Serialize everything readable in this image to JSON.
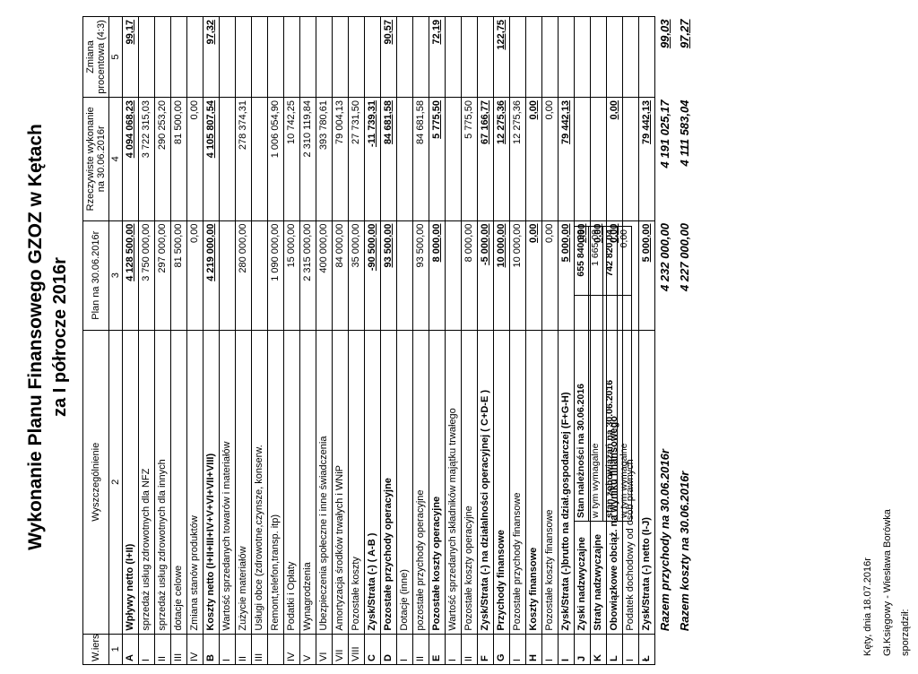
{
  "doc": {
    "title": "Wykonanie Planu Finansowego GZOZ w Kętach",
    "subtitle": "za I półrocze 2016r"
  },
  "headers": {
    "wiersz": "W.iersz",
    "wyszczegolnienie": "Wyszczególnienie",
    "plan": "Plan na 30.06.2016r",
    "wykonanie": "Rzeczywiste wykonanie na 30.06.2016r",
    "zmiana": "Zmiana procentowa (4:3)"
  },
  "colnums": [
    "1",
    "2",
    "3",
    "4",
    "5"
  ],
  "rows": [
    {
      "id": "A",
      "label": "Wpływy netto (I+II)",
      "plan": "4 128 500,00",
      "wyk": "4 094 068,23",
      "pct": "99,17",
      "bold": true
    },
    {
      "id": "I",
      "label": "sprzedaż usług zdrowotnych dla NFZ",
      "plan": "3 750 000,00",
      "wyk": "3 722 315,03",
      "pct": "",
      "bold": false
    },
    {
      "id": "II",
      "label": "sprzedaż usług zdrowotnych dla innych",
      "plan": "297 000,00",
      "wyk": "290 253,20",
      "pct": "",
      "bold": false
    },
    {
      "id": "III",
      "label": "dotacje celowe",
      "plan": "81 500,00",
      "wyk": "81 500,00",
      "pct": "",
      "bold": false
    },
    {
      "id": "IV",
      "label": "Zmiana stanów produktów",
      "plan": "0,00",
      "wyk": "0,00",
      "pct": "",
      "bold": false
    },
    {
      "id": "B",
      "label": "Koszty netto (I+II+III+IV+V+VI+VII+VIII)",
      "plan": "4 219 000,00",
      "wyk": "4 105 807,54",
      "pct": "97,32",
      "bold": true
    },
    {
      "id": "I",
      "label": "Wartość sprzedanych towarów i materiałów",
      "plan": "",
      "wyk": "",
      "pct": "",
      "bold": false
    },
    {
      "id": "II",
      "label": "Zużycie materiałów",
      "plan": "280 000,00",
      "wyk": "278 374,31",
      "pct": "",
      "bold": false
    },
    {
      "id": "III",
      "label": "Usługi obce (zdrowotne,czynsze, konserw.",
      "plan": "",
      "wyk": "",
      "pct": "",
      "bold": false
    },
    {
      "id": "",
      "label": "Remont,telefon,transp. itp)",
      "plan": "1 090 000,00",
      "wyk": "1 006 054,90",
      "pct": "",
      "bold": false
    },
    {
      "id": "IV",
      "label": "Podatki i Opłaty",
      "plan": "15 000,00",
      "wyk": "10 742,25",
      "pct": "",
      "bold": false
    },
    {
      "id": "V",
      "label": "Wynagrodzenia",
      "plan": "2 315 000,00",
      "wyk": "2 310 119,84",
      "pct": "",
      "bold": false
    },
    {
      "id": "VI",
      "label": "Ubezpieczenia społeczne i inne świadczenia",
      "plan": "400 000,00",
      "wyk": "393 780,61",
      "pct": "",
      "bold": false
    },
    {
      "id": "VII",
      "label": "Amortyzacja środków trwałych i WNiP",
      "plan": "84 000,00",
      "wyk": "79 004,13",
      "pct": "",
      "bold": false
    },
    {
      "id": "VIII",
      "label": "Pozostałe koszty",
      "plan": "35 000,00",
      "wyk": "27 731,50",
      "pct": "",
      "bold": false
    },
    {
      "id": "C",
      "label": "Zysk/Strata (-) ( A-B )",
      "plan": "-90 500,00",
      "wyk": "-11 739,31",
      "pct": "",
      "bold": true
    },
    {
      "id": "D",
      "label": "Pozostałe przychody operacyjne",
      "plan": "93 500,00",
      "wyk": "84 681,58",
      "pct": "90,57",
      "bold": true
    },
    {
      "id": "I",
      "label": "Dotacje (inne)",
      "plan": "",
      "wyk": "",
      "pct": "",
      "bold": false
    },
    {
      "id": "II",
      "label": "pozostałe przychody operacyjne",
      "plan": "93 500,00",
      "wyk": "84 681,58",
      "pct": "",
      "bold": false
    },
    {
      "id": "E",
      "label": "Pozostałe koszty operacyjne",
      "plan": "8 000,00",
      "wyk": "5 775,50",
      "pct": "72,19",
      "bold": true
    },
    {
      "id": "I",
      "label": "Wartość sprzedanych składników majątku trwałego",
      "plan": "",
      "wyk": "",
      "pct": "",
      "bold": false
    },
    {
      "id": "II",
      "label": "Pozostałe koszty operacyjne",
      "plan": "8 000,00",
      "wyk": "5 775,50",
      "pct": "",
      "bold": false
    },
    {
      "id": "F",
      "label": "Zysk/Strata (-) na działalności operacyjnej ( C+D-E )",
      "plan": "-5 000,00",
      "wyk": "67 166,77",
      "pct": "",
      "bold": true
    },
    {
      "id": "G",
      "label": "Przychody finansowe",
      "plan": "10 000,00",
      "wyk": "12 275,36",
      "pct": "122,75",
      "bold": true
    },
    {
      "id": "I",
      "label": "Pozostałe przychody finansowe",
      "plan": "10 000,00",
      "wyk": "12 275,36",
      "pct": "",
      "bold": false
    },
    {
      "id": "H",
      "label": "Koszty finansowe",
      "plan": "0,00",
      "wyk": "0,00",
      "pct": "",
      "bold": true
    },
    {
      "id": "I",
      "label": "Pozostałe koszty finansowe",
      "plan": "0,00",
      "wyk": "0,00",
      "pct": "",
      "bold": false
    },
    {
      "id": "I",
      "label": "Zysk/Strata (-)brutto na dział.gospodarczej (F+G-H)",
      "plan": "5 000,00",
      "wyk": "79 442,13",
      "pct": "",
      "bold": true
    },
    {
      "id": "J",
      "label": "Zyski nadzwyczajne",
      "plan": "0,00",
      "wyk": "",
      "pct": "",
      "bold": true
    },
    {
      "id": "K",
      "label": "Straty nadzwyczajne",
      "plan": "0,00",
      "wyk": "",
      "pct": "",
      "bold": true
    },
    {
      "id": "L",
      "label": "Obowiązkowe obciąż. na wyniku finansowego",
      "plan": "0,00",
      "wyk": "0,00",
      "pct": "",
      "bold": true
    },
    {
      "id": "I",
      "label": "Podatek dochodowy od osób prawnych",
      "plan": "",
      "wyk": "",
      "pct": "",
      "bold": false
    },
    {
      "id": "Ł",
      "label": "Zysk/Strata (-) netto (I-J)",
      "plan": "5 000,00",
      "wyk": "79 442,13",
      "pct": "",
      "bold": true
    }
  ],
  "totals": [
    {
      "label": "Razem przychody na 30.06.2016r",
      "plan": "4 232 000,00",
      "wyk": "4 191 025,17",
      "pct": "99,03"
    },
    {
      "label": "Razem koszty na 30.06.2016r",
      "plan": "4 227 000,00",
      "wyk": "4 111 583,04",
      "pct": "97,27"
    }
  ],
  "status": [
    {
      "label": "Stan należności na 30.06.2016",
      "value": "655 840,99"
    },
    {
      "label": "w tym wymagalne",
      "value": "1 665,09"
    },
    {
      "label": "stan zobowiązań na 30.06.2016",
      "value": "742 820,04"
    },
    {
      "label": "w tym wymagalne",
      "value": "0,00"
    }
  ],
  "footer": {
    "place_date": "Kęty, dnia 18.07.2016r",
    "accountant": "Gł.Księgowy - Wiesława Borówka",
    "prepared": "sporządził:"
  }
}
